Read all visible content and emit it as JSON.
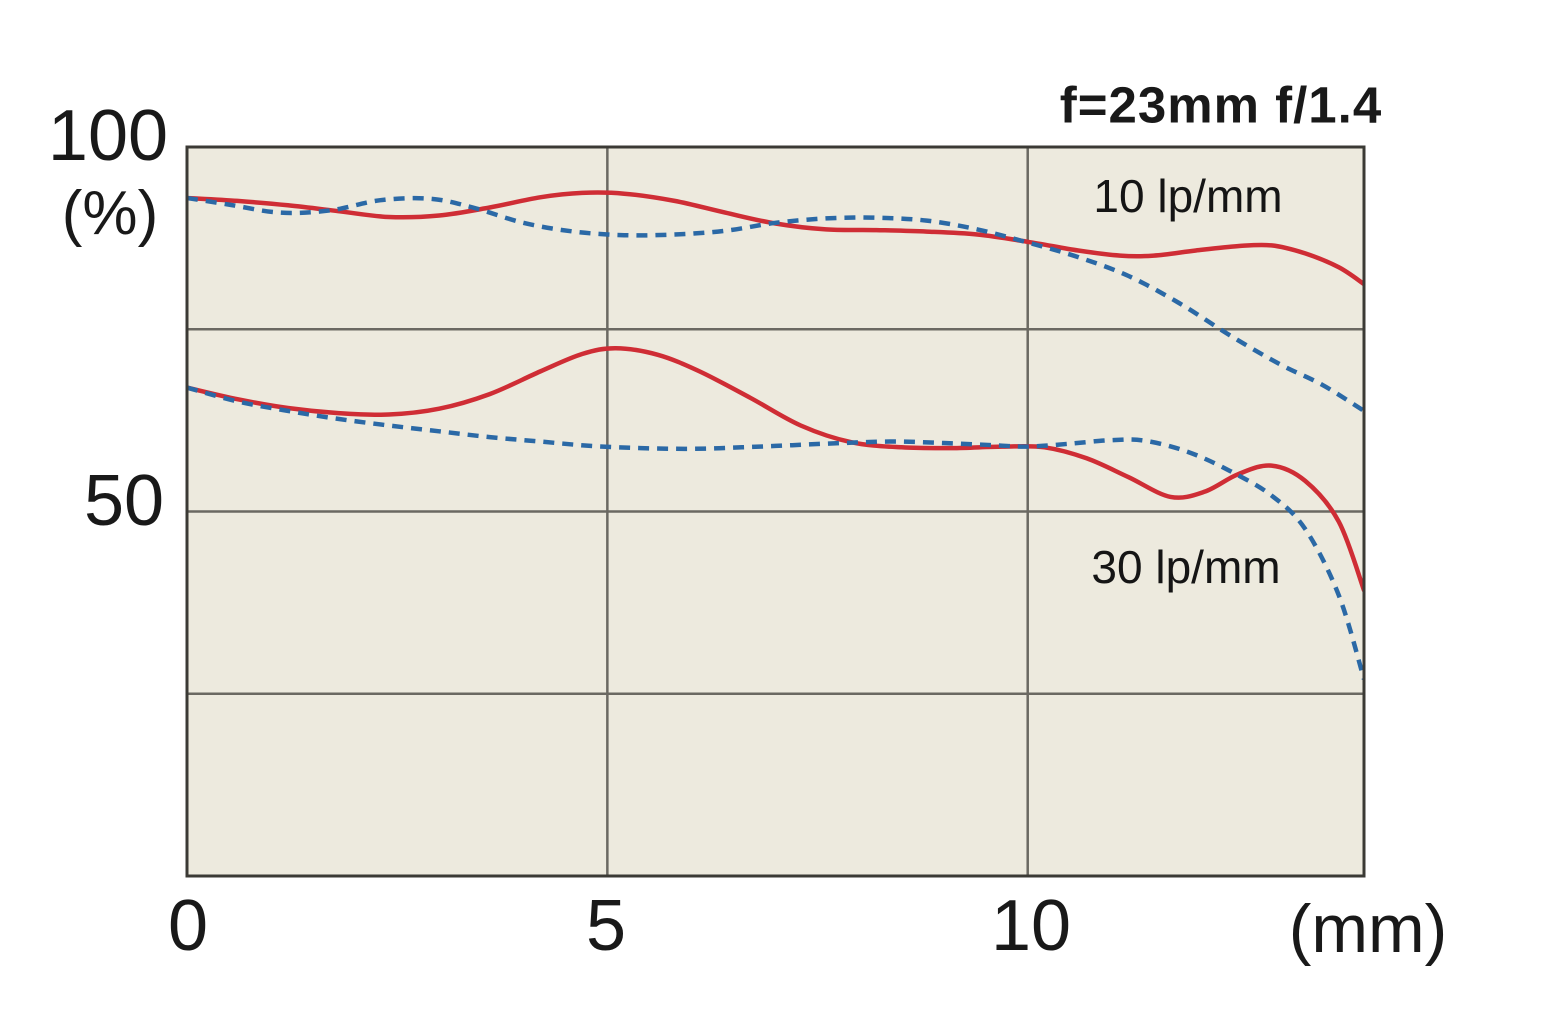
{
  "title": "f=23mm f/1.4",
  "axes": {
    "y_max_label": "100",
    "y_unit": "(%)",
    "y_mid_label": "50",
    "x_ticks": [
      "0",
      "5",
      "10"
    ],
    "x_unit": "(mm)"
  },
  "annotations": [
    {
      "text": "10 lp/mm"
    },
    {
      "text": "30 lp/mm"
    }
  ],
  "colors": {
    "page_bg": "#ffffff",
    "plot_bg": "#edeade",
    "border": "#3b3a35",
    "gridline": "#6b6962",
    "red_line": "#cf2d35",
    "blue_line": "#2b69a6",
    "text": "#191919"
  },
  "chart_data": {
    "type": "line",
    "title": "f=23mm f/1.4",
    "xlabel": "(mm)",
    "ylabel": "(%)",
    "xlim": [
      0,
      14
    ],
    "ylim": [
      0,
      100
    ],
    "x_gridlines": [
      0,
      5,
      10
    ],
    "y_gridlines": [
      25,
      50,
      75
    ],
    "x_tick_values": [
      0,
      5,
      10
    ],
    "y_tick_values": [
      50,
      100
    ],
    "grid": true,
    "legend_position": "in-plot annotations",
    "series": [
      {
        "name": "10 lp/mm solid red",
        "group": "10 lp/mm",
        "style": "solid",
        "color": "#cf2d35",
        "x": [
          0,
          0.6,
          1.2,
          1.8,
          2.4,
          3.0,
          3.6,
          4.2,
          4.7,
          5.2,
          5.8,
          6.4,
          7.0,
          7.6,
          8.2,
          8.8,
          9.4,
          10.0,
          10.6,
          11.1,
          11.5,
          12.0,
          12.5,
          12.9,
          13.3,
          13.7,
          14.0
        ],
        "y": [
          93.0,
          92.6,
          92.0,
          91.2,
          90.4,
          90.6,
          91.7,
          93.1,
          93.7,
          93.6,
          92.6,
          91.0,
          89.5,
          88.7,
          88.6,
          88.4,
          88.0,
          87.0,
          85.8,
          85.1,
          85.1,
          85.8,
          86.4,
          86.5,
          85.4,
          83.5,
          81.2
        ]
      },
      {
        "name": "10 lp/mm dashed blue",
        "group": "10 lp/mm",
        "style": "dashed",
        "color": "#2b69a6",
        "x": [
          0,
          0.5,
          1.1,
          1.7,
          2.3,
          2.9,
          3.4,
          4.0,
          4.6,
          5.2,
          5.8,
          6.4,
          7.0,
          7.6,
          8.2,
          8.8,
          9.4,
          10.0,
          10.6,
          11.2,
          11.8,
          12.4,
          13.0,
          13.5,
          14.0
        ],
        "y": [
          93.0,
          92.1,
          91.0,
          91.3,
          92.7,
          92.9,
          91.7,
          89.6,
          88.4,
          87.9,
          88.0,
          88.5,
          89.6,
          90.2,
          90.3,
          89.9,
          88.7,
          86.9,
          84.9,
          82.3,
          78.6,
          74.2,
          70.2,
          67.4,
          63.8
        ]
      },
      {
        "name": "30 lp/mm solid red",
        "group": "30 lp/mm",
        "style": "solid",
        "color": "#cf2d35",
        "x": [
          0,
          0.6,
          1.2,
          1.8,
          2.4,
          3.0,
          3.6,
          4.2,
          4.7,
          5.1,
          5.6,
          6.1,
          6.7,
          7.3,
          7.9,
          8.5,
          9.1,
          9.7,
          10.2,
          10.7,
          11.2,
          11.7,
          12.1,
          12.5,
          12.9,
          13.3,
          13.7,
          14.0
        ],
        "y": [
          67.0,
          65.4,
          64.2,
          63.5,
          63.3,
          64.1,
          66.1,
          69.2,
          71.6,
          72.4,
          71.5,
          69.2,
          65.6,
          61.8,
          59.5,
          58.8,
          58.7,
          58.9,
          58.8,
          57.3,
          54.7,
          52.0,
          52.7,
          55.1,
          56.3,
          54.2,
          48.6,
          39.2
        ]
      },
      {
        "name": "30 lp/mm dashed blue",
        "group": "30 lp/mm",
        "style": "dashed",
        "color": "#2b69a6",
        "x": [
          0,
          0.6,
          1.2,
          1.8,
          2.4,
          3.0,
          3.6,
          4.2,
          4.8,
          5.4,
          6.0,
          6.6,
          7.2,
          7.8,
          8.4,
          9.0,
          9.6,
          10.0,
          10.5,
          11.0,
          11.4,
          11.9,
          12.4,
          12.9,
          13.3,
          13.7,
          14.0
        ],
        "y": [
          67.0,
          65.1,
          63.8,
          62.7,
          61.8,
          61.0,
          60.2,
          59.6,
          59.0,
          58.7,
          58.6,
          58.8,
          59.1,
          59.4,
          59.6,
          59.4,
          59.1,
          58.9,
          59.3,
          59.8,
          59.7,
          58.2,
          55.6,
          52.2,
          47.6,
          38.5,
          27.0
        ]
      }
    ]
  }
}
